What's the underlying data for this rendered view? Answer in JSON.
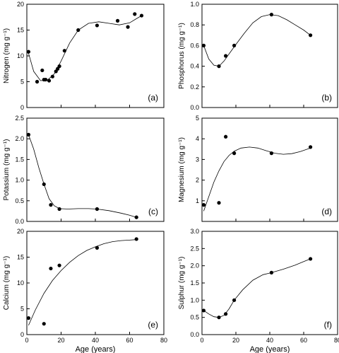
{
  "chart_data": [
    {
      "type": "scatter",
      "panel_label": "(a)",
      "ylabel": "Nitrogen (mg g⁻¹)",
      "xlim": [
        0,
        80
      ],
      "ylim": [
        0,
        20
      ],
      "xticks": [],
      "yticks": [
        0,
        5,
        10,
        15,
        20
      ],
      "points": {
        "x": [
          1,
          6,
          9,
          10,
          11,
          13,
          15,
          17,
          18,
          19,
          22,
          30,
          41,
          53,
          59,
          63,
          67
        ],
        "y": [
          10.8,
          5.0,
          7.2,
          5.4,
          5.4,
          5.2,
          6.0,
          7.0,
          7.5,
          8.0,
          11.0,
          15.0,
          15.9,
          16.8,
          15.6,
          18.1,
          17.8
        ]
      },
      "curve": {
        "x": [
          1,
          4,
          8,
          12,
          16,
          20,
          25,
          30,
          36,
          42,
          48,
          54,
          60,
          64,
          67
        ],
        "y": [
          10.5,
          7.0,
          5.2,
          5.3,
          6.5,
          9.0,
          12.5,
          15.0,
          16.3,
          16.6,
          16.3,
          16.0,
          16.4,
          17.2,
          17.8
        ]
      }
    },
    {
      "type": "scatter",
      "panel_label": "(b)",
      "ylabel": "Phosphorus (mg g⁻¹)",
      "xlim": [
        0,
        80
      ],
      "ylim": [
        0,
        1.0
      ],
      "xticks": [],
      "yticks": [
        0,
        0.2,
        0.4,
        0.6,
        0.8,
        1.0
      ],
      "points": {
        "x": [
          1,
          10,
          14,
          19,
          41,
          64
        ],
        "y": [
          0.6,
          0.4,
          0.5,
          0.6,
          0.9,
          0.7
        ]
      },
      "curve": {
        "x": [
          1,
          4,
          7,
          10,
          13,
          16,
          20,
          25,
          30,
          35,
          40,
          45,
          50,
          55,
          60,
          64
        ],
        "y": [
          0.6,
          0.47,
          0.41,
          0.4,
          0.45,
          0.52,
          0.61,
          0.72,
          0.82,
          0.88,
          0.9,
          0.89,
          0.85,
          0.8,
          0.75,
          0.7
        ]
      }
    },
    {
      "type": "scatter",
      "panel_label": "(c)",
      "ylabel": "Potassium (mg g⁻¹)",
      "xlim": [
        0,
        80
      ],
      "ylim": [
        0,
        2.5
      ],
      "xticks": [],
      "yticks": [
        0,
        0.5,
        1.0,
        1.5,
        2.0,
        2.5
      ],
      "points": {
        "x": [
          1,
          10,
          14,
          19,
          41,
          64
        ],
        "y": [
          2.1,
          0.9,
          0.4,
          0.3,
          0.3,
          0.1
        ]
      },
      "curve": {
        "x": [
          1,
          4,
          7,
          10,
          13,
          16,
          19,
          24,
          30,
          36,
          41,
          48,
          55,
          60,
          64
        ],
        "y": [
          2.1,
          1.75,
          1.3,
          0.9,
          0.55,
          0.38,
          0.31,
          0.3,
          0.31,
          0.31,
          0.3,
          0.26,
          0.2,
          0.15,
          0.1
        ]
      }
    },
    {
      "type": "scatter",
      "panel_label": "(d)",
      "ylabel": "Magnesium (mg g⁻¹)",
      "xlim": [
        0,
        80
      ],
      "ylim": [
        0,
        5
      ],
      "xticks": [],
      "yticks": [
        1,
        2,
        3,
        4,
        5
      ],
      "points": {
        "x": [
          1,
          10,
          14,
          19,
          41,
          64
        ],
        "y": [
          0.8,
          0.9,
          4.1,
          3.3,
          3.3,
          3.6
        ]
      },
      "curve": {
        "x": [
          1,
          4,
          7,
          10,
          13,
          16,
          19,
          23,
          28,
          33,
          38,
          43,
          48,
          53,
          58,
          64
        ],
        "y": [
          0.5,
          1.2,
          1.9,
          2.45,
          2.9,
          3.2,
          3.4,
          3.55,
          3.6,
          3.55,
          3.42,
          3.3,
          3.25,
          3.28,
          3.38,
          3.55
        ]
      }
    },
    {
      "type": "scatter",
      "panel_label": "(e)",
      "ylabel": "Calcium (mg g⁻¹)",
      "xlabel": "Age (years)",
      "xlim": [
        0,
        80
      ],
      "ylim": [
        0,
        20
      ],
      "xticks": [
        0,
        20,
        40,
        60,
        80
      ],
      "yticks": [
        0,
        5,
        10,
        15,
        20
      ],
      "points": {
        "x": [
          1,
          10,
          14,
          19,
          41,
          64
        ],
        "y": [
          3.2,
          2.1,
          12.8,
          13.4,
          16.8,
          18.5
        ]
      },
      "curve": {
        "x": [
          1,
          5,
          10,
          15,
          20,
          25,
          30,
          35,
          40,
          45,
          50,
          55,
          60,
          64
        ],
        "y": [
          1.8,
          4.8,
          8.0,
          10.5,
          12.4,
          14.0,
          15.3,
          16.3,
          17.0,
          17.6,
          18.0,
          18.2,
          18.3,
          18.4
        ]
      }
    },
    {
      "type": "scatter",
      "panel_label": "(f)",
      "ylabel": "Sulphur (mg g⁻¹)",
      "xlabel": "Age (years)",
      "xlim": [
        0,
        80
      ],
      "ylim": [
        0,
        3.0
      ],
      "xticks": [
        0,
        20,
        40,
        60,
        80
      ],
      "yticks": [
        0,
        0.5,
        1.0,
        1.5,
        2.0,
        2.5,
        3.0
      ],
      "points": {
        "x": [
          1,
          10,
          14,
          19,
          41,
          64
        ],
        "y": [
          0.7,
          0.5,
          0.6,
          1.0,
          1.8,
          2.2
        ]
      },
      "curve": {
        "x": [
          1,
          4,
          7,
          10,
          13,
          16,
          19,
          24,
          30,
          36,
          41,
          48,
          55,
          60,
          64
        ],
        "y": [
          0.7,
          0.6,
          0.52,
          0.5,
          0.56,
          0.75,
          1.0,
          1.3,
          1.58,
          1.74,
          1.8,
          1.9,
          2.02,
          2.12,
          2.2
        ]
      }
    }
  ]
}
